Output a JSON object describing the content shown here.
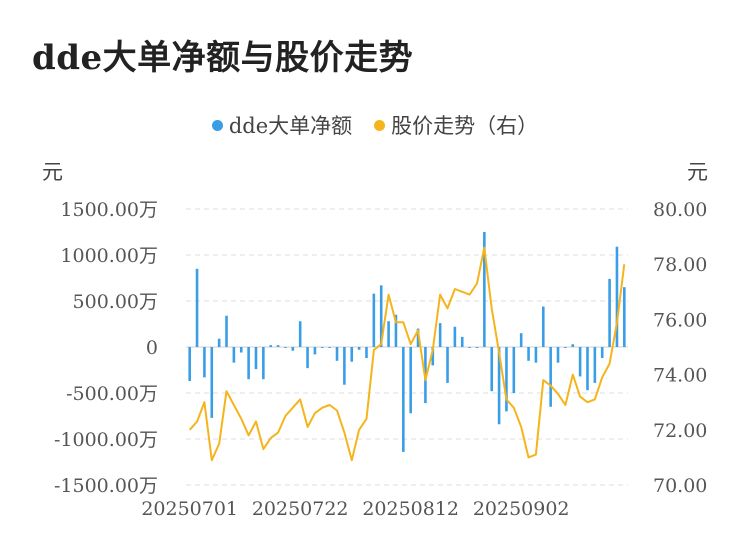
{
  "title": "dde大单净额与股价走势",
  "colors": {
    "bars": "#3a9ee6",
    "line": "#f5b41c",
    "grid": "#e3e3e3"
  },
  "chart_data": {
    "type": "bar+line",
    "title": "dde大单净额与股价走势",
    "legend": {
      "placement": "top",
      "entries": [
        "dde大单净额",
        "股价走势（右）"
      ]
    },
    "y_left": {
      "unit": "元",
      "min": -1500,
      "max": 1500,
      "ticks": [
        -1500,
        -1000,
        -500,
        0,
        500,
        1000,
        1500
      ],
      "tick_labels": [
        "-1500.00万",
        "-1000.00万",
        "-500.00万",
        "0",
        "500.00万",
        "1000.00万",
        "1500.00万"
      ]
    },
    "y_right": {
      "unit": "元",
      "min": 70,
      "max": 80,
      "ticks": [
        70,
        72,
        74,
        76,
        78,
        80
      ],
      "tick_labels": [
        "70.00",
        "72.00",
        "74.00",
        "76.00",
        "78.00",
        "80.00"
      ]
    },
    "x_tick_labels": [
      {
        "index": 0,
        "label": "20250701"
      },
      {
        "index": 15,
        "label": "20250722"
      },
      {
        "index": 30,
        "label": "20250812"
      },
      {
        "index": 45,
        "label": "20250902"
      }
    ],
    "grid": true,
    "series": [
      {
        "name": "dde大单净额",
        "type": "bar",
        "axis": "left",
        "values": [
          -370,
          850,
          -330,
          -770,
          90,
          340,
          -170,
          -60,
          -350,
          -240,
          -350,
          20,
          20,
          -10,
          -40,
          280,
          -230,
          -80,
          -10,
          -10,
          -150,
          -410,
          -160,
          -30,
          -120,
          580,
          670,
          280,
          350,
          -1140,
          -720,
          200,
          -610,
          -200,
          260,
          -390,
          220,
          110,
          -10,
          -10,
          1250,
          -480,
          -840,
          -700,
          -500,
          150,
          -150,
          -170,
          440,
          -650,
          -170,
          -10,
          30,
          -320,
          -470,
          -390,
          -120,
          740,
          1090,
          650
        ]
      },
      {
        "name": "股价走势（右）",
        "type": "line",
        "axis": "right",
        "values": [
          72.0,
          72.3,
          73.0,
          70.9,
          71.5,
          73.4,
          72.9,
          72.4,
          71.8,
          72.3,
          71.3,
          71.7,
          71.9,
          72.5,
          72.8,
          73.1,
          72.1,
          72.6,
          72.8,
          72.9,
          72.7,
          71.9,
          70.9,
          72.0,
          72.4,
          74.9,
          75.1,
          76.9,
          75.9,
          75.9,
          75.1,
          75.6,
          73.8,
          74.9,
          76.9,
          76.4,
          77.1,
          77.0,
          76.9,
          77.3,
          78.6,
          76.4,
          74.8,
          73.1,
          72.8,
          72.1,
          71.0,
          71.1,
          73.8,
          73.6,
          73.3,
          72.9,
          74.0,
          73.2,
          73.0,
          73.1,
          73.9,
          74.4,
          75.9,
          78.0
        ]
      }
    ]
  }
}
